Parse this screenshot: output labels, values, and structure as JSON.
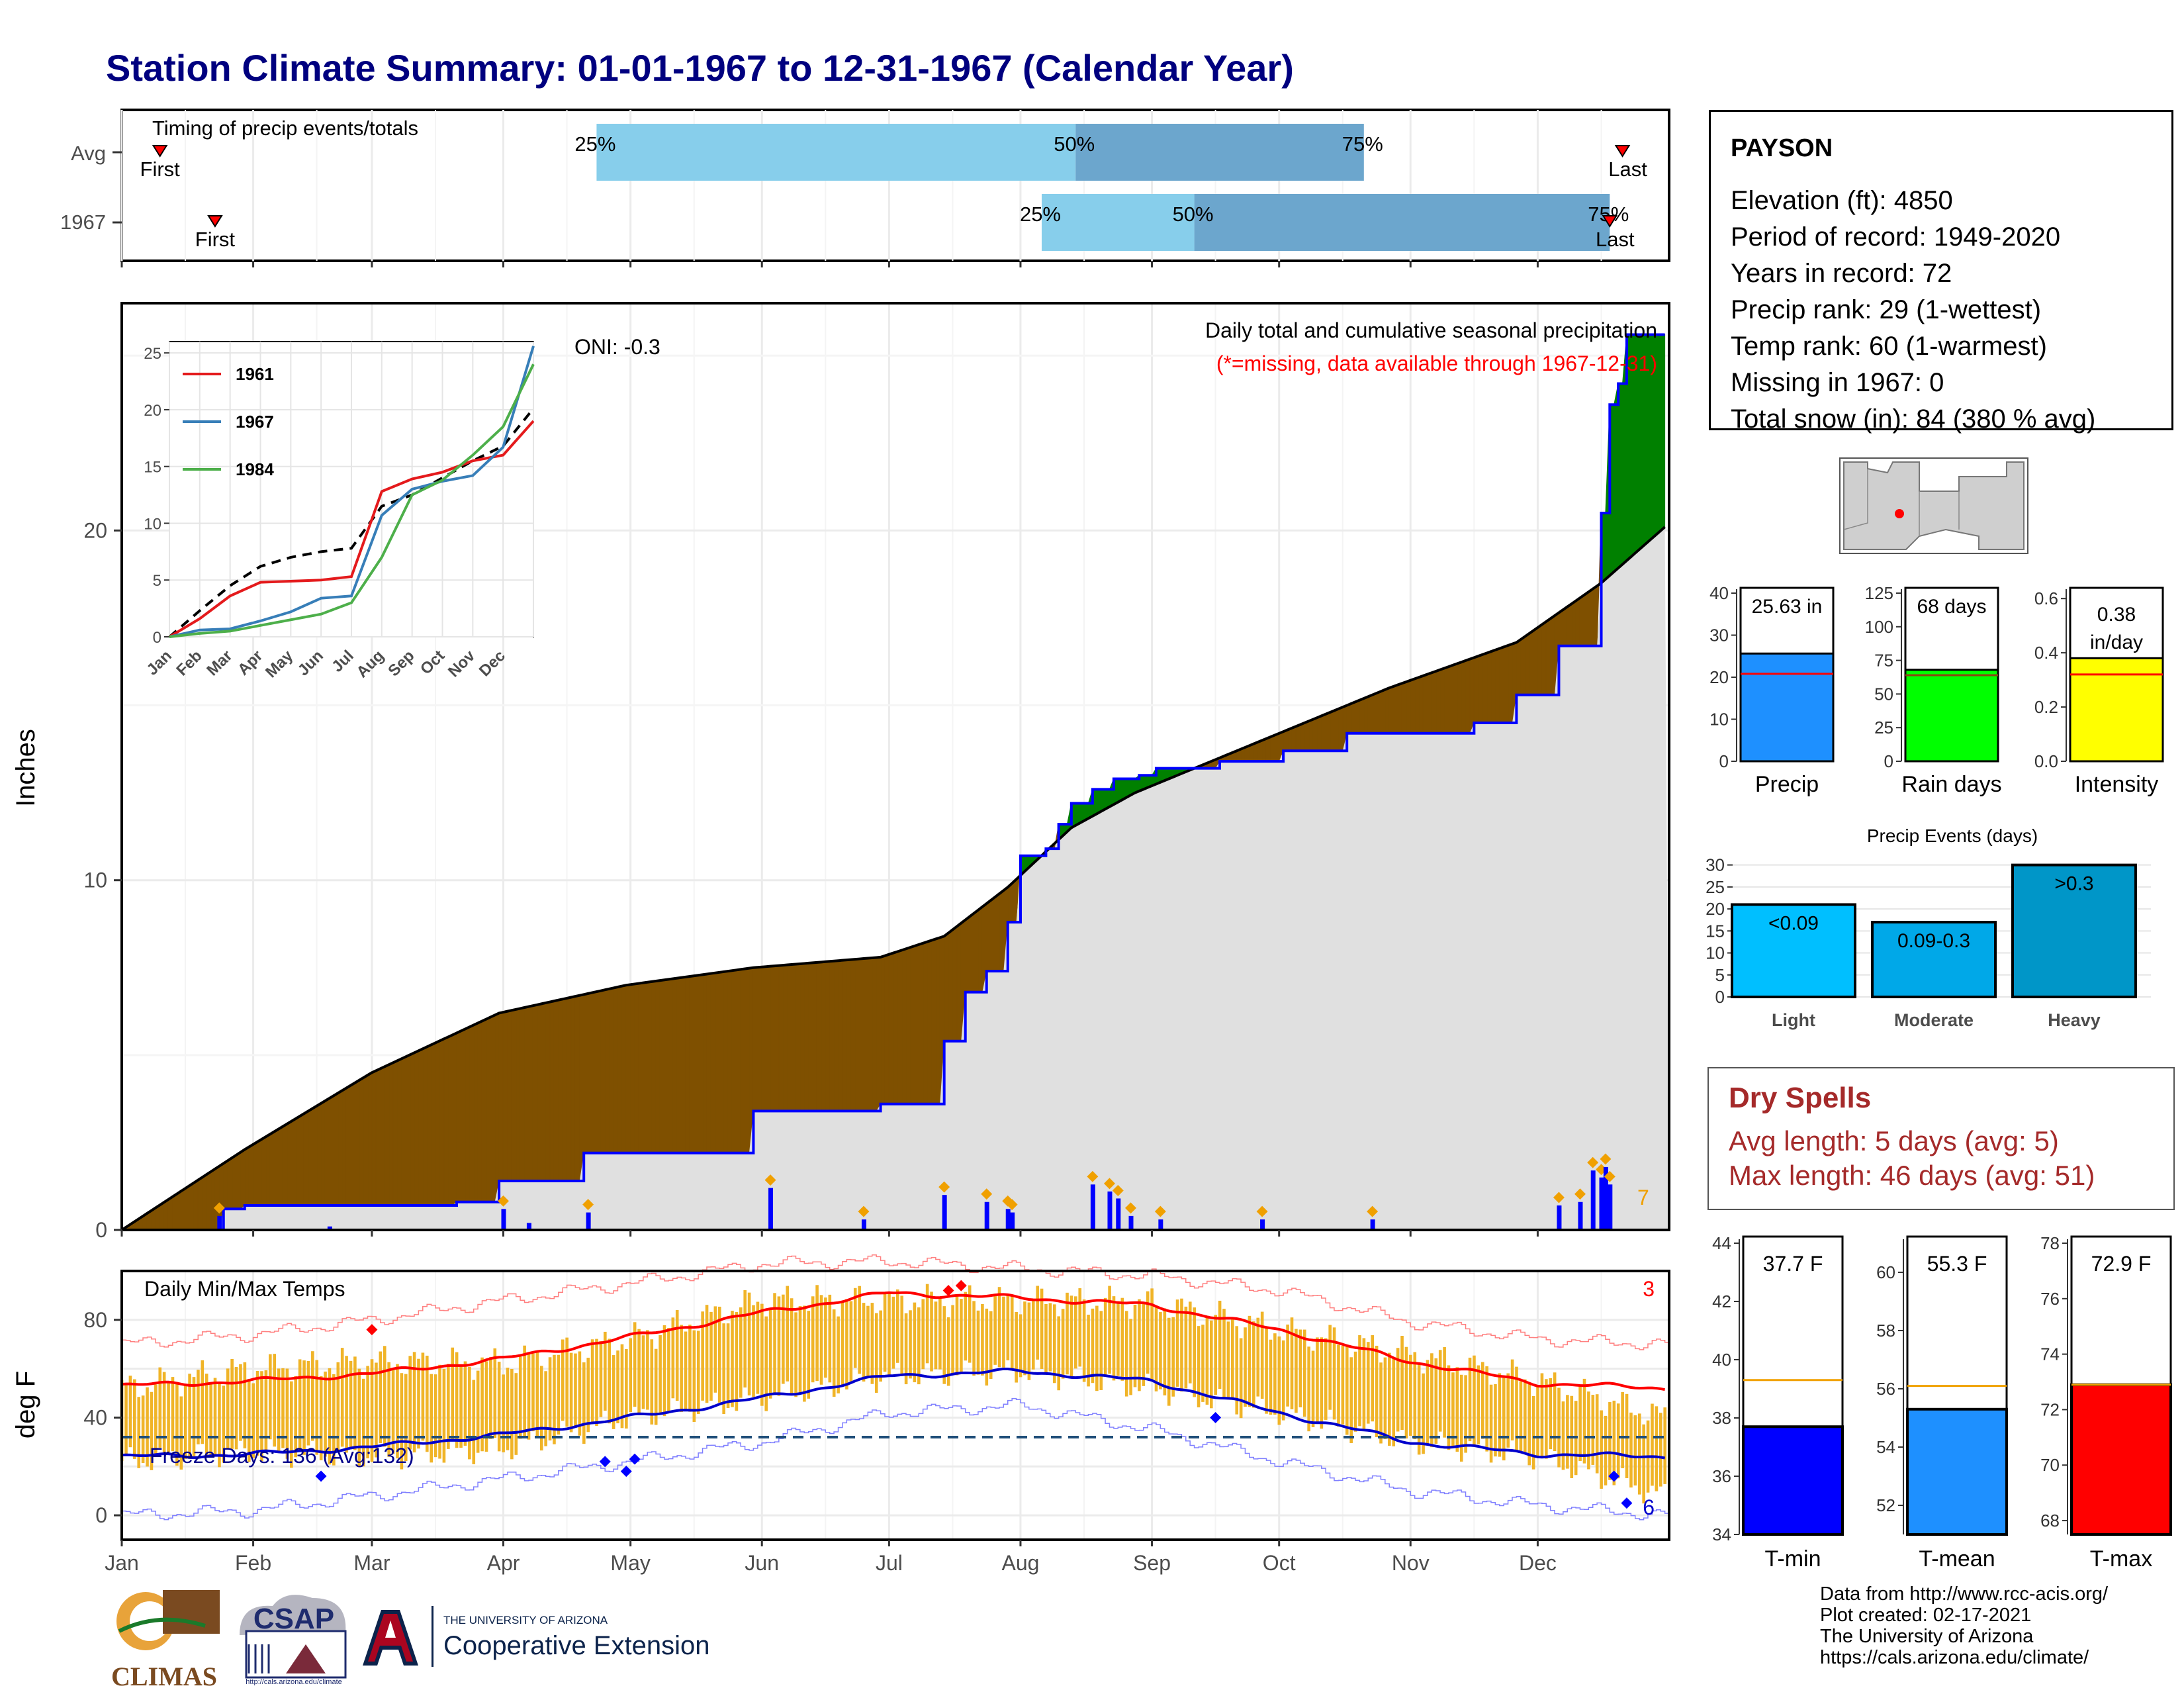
{
  "title": "Station Climate Summary: 01-01-1967 to 12-31-1967 (Calendar Year)",
  "colors": {
    "title": "#00007f",
    "accum_surplus": "#008000",
    "accum_deficit": "#7f5000",
    "avg_accum": "#e0e0e0",
    "daily_bar": "#0000ff",
    "temp_bar": "#f0b428",
    "tmax_line": "#ff0000",
    "tmin_line": "#0000cc",
    "dry_spell_text": "#a52a2a"
  },
  "timing": {
    "title": "Timing of precip events/totals",
    "rows": [
      {
        "label": "Avg",
        "first_label": "First",
        "last_label": "Last",
        "q25": "25%",
        "q50": "50%",
        "q75": "75%",
        "first_doy": 10,
        "p25_doy": 113,
        "p50_doy": 226,
        "p75_doy": 294,
        "last_doy": 355
      },
      {
        "label": "1967",
        "first_label": "First",
        "last_label": "Last",
        "q25": "25%",
        "q50": "50%",
        "q75": "75%",
        "first_doy": 23,
        "p25_doy": 218,
        "p50_doy": 254,
        "p75_doy": 352,
        "last_doy": 352
      }
    ]
  },
  "precip_panel": {
    "ylabel": "Inches",
    "yticks": [
      "0",
      "10",
      "20"
    ],
    "caption1": "Daily total and cumulative seasonal precipitation",
    "caption2": "(*=missing, data available through 1967-12-31)",
    "oni": "ONI: -0.3",
    "max_daily_count": "7",
    "ymax": 26.5
  },
  "inset": {
    "yticks": [
      "0",
      "5",
      "10",
      "15",
      "20",
      "25"
    ],
    "xticks": [
      "Jan",
      "Feb",
      "Mar",
      "Apr",
      "May",
      "Jun",
      "Jul",
      "Aug",
      "Sep",
      "Oct",
      "Nov",
      "Dec"
    ],
    "legend": [
      "1961",
      "1967",
      "1984"
    ]
  },
  "temp_panel": {
    "ylabel": "deg F",
    "title": "Daily Min/Max Temps",
    "yticks": [
      "0",
      "40",
      "80"
    ],
    "freeze_label": "Freeze Days: 136 (Avg:132)",
    "count_max": "3",
    "count_min": "6"
  },
  "months": [
    "Jan",
    "Feb",
    "Mar",
    "Apr",
    "May",
    "Jun",
    "Jul",
    "Aug",
    "Sep",
    "Oct",
    "Nov",
    "Dec"
  ],
  "station": {
    "name": "PAYSON",
    "lines": [
      "Elevation (ft): 4850",
      "Period of record: 1949-2020",
      "Years in record: 72",
      "Precip rank: 29 (1-wettest)",
      "Temp rank: 60 (1-warmest)",
      "Missing in 1967: 0",
      "Total snow (in): 84 (380 % avg)"
    ]
  },
  "summary_bars": [
    {
      "label": "Precip",
      "value_label": "25.63 in",
      "value": 25.63,
      "avg": 20.8,
      "ymax": 40,
      "yticks": [
        "0",
        "10",
        "20",
        "30",
        "40"
      ],
      "color": "#1e90ff"
    },
    {
      "label": "Rain days",
      "value_label": "68 days",
      "value": 68,
      "avg": 64,
      "ymax": 125,
      "yticks": [
        "0",
        "25",
        "50",
        "75",
        "100",
        "125"
      ],
      "color": "#00ff00"
    },
    {
      "label": "Intensity",
      "value_label": "0.38 in/day",
      "value": 0.38,
      "avg": 0.32,
      "ymax": 0.62,
      "yticks": [
        "0.0",
        "0.2",
        "0.4",
        "0.6"
      ],
      "color": "#ffff00"
    }
  ],
  "precip_events": {
    "title": "Precip Events (days)",
    "yticks": [
      "0",
      "5",
      "10",
      "15",
      "20",
      "25",
      "30"
    ],
    "bars": [
      {
        "label": "Light",
        "range": "<0.09",
        "value": 21,
        "color": "#00bfff"
      },
      {
        "label": "Moderate",
        "range": "0.09-0.3",
        "value": 17,
        "color": "#00a8e8"
      },
      {
        "label": "Heavy",
        "range": ">0.3",
        "value": 30,
        "color": "#0096c8"
      }
    ]
  },
  "dry_spells": {
    "title": "Dry Spells",
    "avg_line": "Avg length: 5 days (avg: 5)",
    "max_line": "Max length: 46 days (avg: 51)"
  },
  "temp_bars": [
    {
      "label": "T-min",
      "value_label": "37.7 F",
      "value": 37.7,
      "avg": 39.3,
      "ymin": 34,
      "ymax": 44,
      "yticks": [
        "34",
        "36",
        "38",
        "40",
        "42",
        "44"
      ],
      "color": "#0000ff"
    },
    {
      "label": "T-mean",
      "value_label": "55.3 F",
      "value": 55.3,
      "avg": 56.1,
      "ymin": 51,
      "ymax": 61,
      "yticks": [
        "52",
        "54",
        "56",
        "58",
        "60"
      ],
      "color": "#1e90ff"
    },
    {
      "label": "T-max",
      "value_label": "72.9 F",
      "value": 72.9,
      "avg": 72.9,
      "ymin": 67.5,
      "ymax": 78,
      "yticks": [
        "68",
        "70",
        "72",
        "74",
        "76",
        "78"
      ],
      "color": "#ff0000"
    }
  ],
  "logos": {
    "climas": "CLIMAS",
    "csap": "CSAP",
    "csap_url": "http://cals.arizona.edu/climate",
    "ua_small": "THE UNIVERSITY OF ARIZONA",
    "ua_big": "Cooperative Extension"
  },
  "credits": [
    "Data from http://www.rcc-acis.org/",
    "Plot created: 02-17-2021",
    "The University of Arizona",
    "https://cals.arizona.edu/climate/"
  ],
  "chart_data": [
    {
      "type": "area",
      "title": "Daily total and cumulative seasonal precipitation",
      "ylabel": "Inches",
      "ylim": [
        0,
        26.5
      ],
      "xlim": [
        "Jan 1",
        "Dec 31"
      ],
      "series": [
        {
          "name": "avg_cumulative",
          "x": [
            1,
            30,
            60,
            90,
            120,
            150,
            180,
            195,
            210,
            225,
            240,
            270,
            300,
            330,
            350,
            365
          ],
          "values": [
            0,
            2.3,
            4.5,
            6.2,
            7.0,
            7.5,
            7.8,
            8.4,
            9.8,
            11.5,
            12.5,
            14.0,
            15.5,
            16.8,
            18.5,
            20.1
          ]
        },
        {
          "name": "1967 cumulative",
          "x": [
            1,
            25,
            30,
            60,
            80,
            90,
            110,
            140,
            150,
            180,
            195,
            200,
            205,
            210,
            213,
            219,
            222,
            225,
            230,
            235,
            241,
            245,
            260,
            275,
            290,
            300,
            310,
            320,
            330,
            340,
            348,
            350,
            352,
            354,
            356,
            358,
            365
          ],
          "values": [
            0,
            0.6,
            0.7,
            0.7,
            0.8,
            1.4,
            2.2,
            2.2,
            3.4,
            3.6,
            5.4,
            6.8,
            7.4,
            8.8,
            10.7,
            10.9,
            11.6,
            12.2,
            12.6,
            12.9,
            13.0,
            13.2,
            13.4,
            13.7,
            14.2,
            14.2,
            14.2,
            14.5,
            15.3,
            16.7,
            16.7,
            20.5,
            23.6,
            24.2,
            25.6,
            25.6,
            25.6
          ]
        },
        {
          "name": "daily precip",
          "x": [
            24,
            50,
            91,
            97,
            111,
            154,
            176,
            195,
            205,
            210,
            211,
            230,
            234,
            236,
            239,
            246,
            270,
            296,
            340,
            345,
            348,
            350,
            351,
            352
          ],
          "values": [
            0.4,
            0.1,
            0.6,
            0.2,
            0.5,
            1.2,
            0.3,
            1.0,
            0.8,
            0.6,
            0.5,
            1.3,
            1.1,
            0.9,
            0.4,
            0.3,
            0.3,
            0.3,
            0.7,
            0.8,
            1.7,
            1.5,
            1.8,
            1.3
          ]
        }
      ]
    },
    {
      "type": "line",
      "title": "",
      "ylim": [
        0,
        26
      ],
      "xlabel": "",
      "ylabel": "",
      "x": [
        0,
        1,
        2,
        3,
        4,
        5,
        6,
        7,
        8,
        9,
        10,
        11,
        12
      ],
      "series": [
        {
          "name": "average",
          "values": [
            0,
            2.3,
            4.5,
            6.2,
            7.0,
            7.5,
            7.8,
            11.5,
            12.5,
            14.0,
            15.5,
            16.8,
            20.1
          ]
        },
        {
          "name": "1961",
          "values": [
            0,
            1.6,
            3.6,
            4.8,
            4.9,
            5.0,
            5.3,
            12.8,
            13.9,
            14.5,
            15.5,
            16.0,
            19.0
          ]
        },
        {
          "name": "1967",
          "values": [
            0,
            0.6,
            0.7,
            1.4,
            2.2,
            3.4,
            3.6,
            10.7,
            13.0,
            13.7,
            14.2,
            16.7,
            25.6
          ]
        },
        {
          "name": "1984",
          "values": [
            0,
            0.3,
            0.5,
            1.0,
            1.5,
            2.0,
            3.0,
            7.0,
            12.5,
            13.8,
            16.0,
            18.5,
            24.0
          ]
        }
      ]
    },
    {
      "type": "line",
      "title": "Daily Min/Max Temps",
      "ylabel": "deg F",
      "ylim": [
        -10,
        100
      ],
      "x": [
        1,
        32,
        60,
        91,
        121,
        152,
        182,
        213,
        244,
        274,
        305,
        335,
        365
      ],
      "series": [
        {
          "name": "avg_tmax",
          "values": [
            53,
            55,
            58,
            64,
            73,
            83,
            91,
            89,
            86,
            76,
            63,
            54,
            52
          ]
        },
        {
          "name": "avg_tmin",
          "values": [
            24,
            25,
            28,
            33,
            40,
            48,
            57,
            59,
            55,
            42,
            30,
            25,
            24
          ]
        },
        {
          "name": "record_high",
          "values": [
            70,
            74,
            80,
            88,
            95,
            103,
            104,
            101,
            98,
            92,
            79,
            72,
            70
          ]
        },
        {
          "name": "record_low",
          "values": [
            0,
            2,
            8,
            15,
            22,
            30,
            42,
            45,
            35,
            22,
            10,
            4,
            0
          ]
        },
        {
          "name": "1967_tmax",
          "values": [
            52,
            60,
            63,
            62,
            72,
            88,
            88,
            88,
            87,
            76,
            66,
            55,
            40
          ]
        },
        {
          "name": "1967_tmin",
          "values": [
            22,
            26,
            24,
            27,
            40,
            48,
            57,
            59,
            52,
            42,
            30,
            24,
            8
          ]
        }
      ],
      "freeze_threshold": 32
    }
  ]
}
